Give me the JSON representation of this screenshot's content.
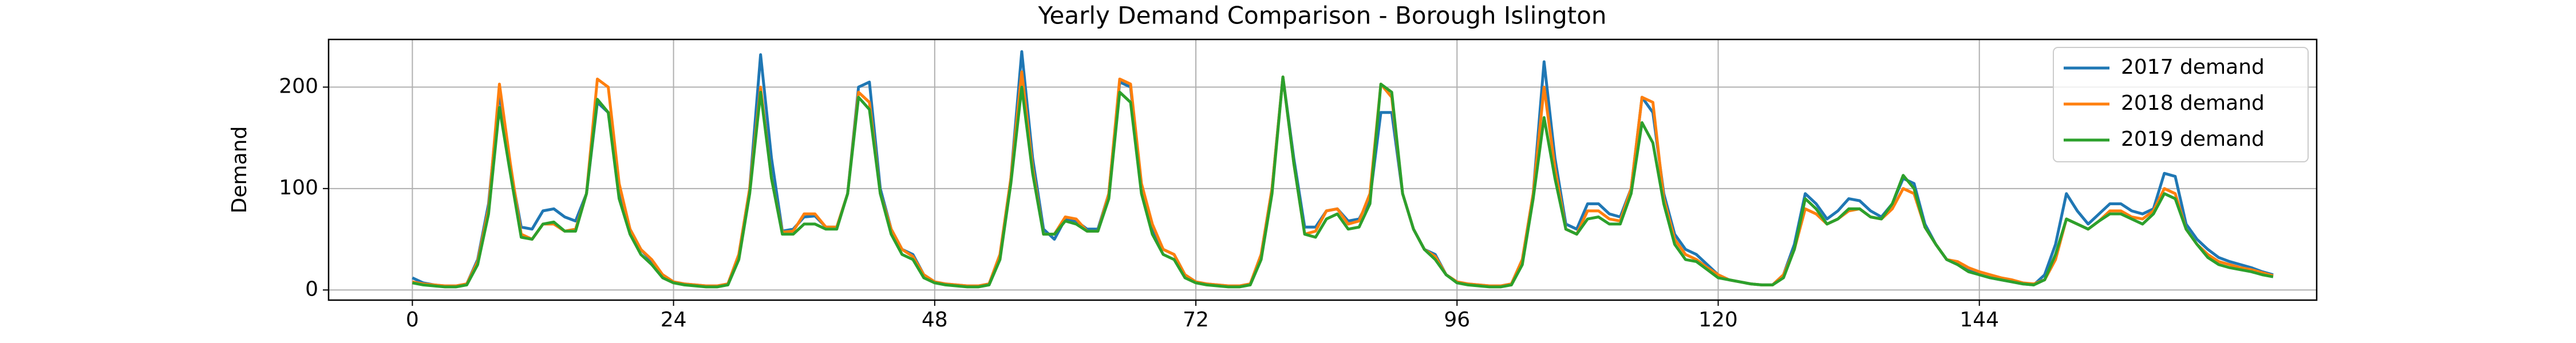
{
  "chart_data": {
    "type": "line",
    "title": "Yearly Demand Comparison - Borough Islington",
    "ylabel": "Demand",
    "xlim": [
      -7.7,
      175
    ],
    "xticks": [
      0,
      24,
      48,
      72,
      96,
      120,
      144
    ],
    "ylim": [
      -10,
      247
    ],
    "yticks": [
      0,
      100,
      200
    ],
    "grid": true,
    "legend": "upper right",
    "x": [
      0,
      1,
      2,
      3,
      4,
      5,
      6,
      7,
      8,
      9,
      10,
      11,
      12,
      13,
      14,
      15,
      16,
      17,
      18,
      19,
      20,
      21,
      22,
      23,
      24,
      25,
      26,
      27,
      28,
      29,
      30,
      31,
      32,
      33,
      34,
      35,
      36,
      37,
      38,
      39,
      40,
      41,
      42,
      43,
      44,
      45,
      46,
      47,
      48,
      49,
      50,
      51,
      52,
      53,
      54,
      55,
      56,
      57,
      58,
      59,
      60,
      61,
      62,
      63,
      64,
      65,
      66,
      67,
      68,
      69,
      70,
      71,
      72,
      73,
      74,
      75,
      76,
      77,
      78,
      79,
      80,
      81,
      82,
      83,
      84,
      85,
      86,
      87,
      88,
      89,
      90,
      91,
      92,
      93,
      94,
      95,
      96,
      97,
      98,
      99,
      100,
      101,
      102,
      103,
      104,
      105,
      106,
      107,
      108,
      109,
      110,
      111,
      112,
      113,
      114,
      115,
      116,
      117,
      118,
      119,
      120,
      121,
      122,
      123,
      124,
      125,
      126,
      127,
      128,
      129,
      130,
      131,
      132,
      133,
      134,
      135,
      136,
      137,
      138,
      139,
      140,
      141,
      142,
      143,
      144,
      145,
      146,
      147,
      148,
      149,
      150,
      151,
      152,
      153,
      154,
      155,
      156,
      157,
      158,
      159,
      160,
      161,
      162,
      163,
      164,
      165,
      166,
      167,
      168,
      169,
      170,
      171
    ],
    "series": [
      {
        "name": "2017 demand",
        "color": "#1f77b4",
        "values": [
          12,
          7,
          5,
          4,
          4,
          6,
          30,
          85,
          195,
          120,
          62,
          60,
          78,
          80,
          72,
          68,
          95,
          185,
          175,
          100,
          60,
          40,
          28,
          15,
          8,
          6,
          5,
          4,
          4,
          6,
          35,
          100,
          232,
          130,
          58,
          60,
          72,
          73,
          62,
          62,
          95,
          200,
          205,
          100,
          60,
          40,
          35,
          15,
          8,
          6,
          5,
          4,
          4,
          6,
          35,
          110,
          235,
          130,
          60,
          50,
          70,
          68,
          60,
          60,
          95,
          205,
          200,
          100,
          60,
          40,
          35,
          15,
          8,
          6,
          5,
          4,
          4,
          6,
          35,
          100,
          210,
          130,
          62,
          62,
          78,
          80,
          68,
          70,
          90,
          175,
          175,
          95,
          60,
          40,
          35,
          15,
          8,
          6,
          5,
          4,
          4,
          6,
          30,
          95,
          225,
          130,
          65,
          60,
          85,
          85,
          75,
          72,
          100,
          190,
          175,
          95,
          55,
          40,
          35,
          25,
          15,
          10,
          8,
          6,
          5,
          5,
          15,
          45,
          95,
          85,
          70,
          78,
          90,
          88,
          78,
          72,
          85,
          110,
          105,
          65,
          45,
          30,
          25,
          20,
          15,
          12,
          10,
          8,
          6,
          5,
          15,
          45,
          95,
          78,
          65,
          75,
          85,
          85,
          78,
          75,
          80,
          115,
          112,
          65,
          50,
          40,
          32,
          28,
          25,
          22,
          18,
          15
        ]
      },
      {
        "name": "2018 demand",
        "color": "#ff7f0e",
        "values": [
          8,
          6,
          5,
          4,
          4,
          6,
          28,
          80,
          203,
          125,
          55,
          50,
          65,
          65,
          58,
          60,
          95,
          208,
          200,
          105,
          60,
          40,
          30,
          15,
          8,
          6,
          5,
          4,
          4,
          6,
          35,
          100,
          200,
          110,
          57,
          58,
          75,
          75,
          62,
          62,
          95,
          195,
          185,
          95,
          60,
          40,
          33,
          15,
          8,
          6,
          5,
          4,
          4,
          6,
          35,
          110,
          215,
          120,
          55,
          55,
          72,
          70,
          58,
          58,
          95,
          208,
          203,
          105,
          65,
          40,
          35,
          15,
          8,
          6,
          5,
          4,
          4,
          6,
          35,
          100,
          210,
          125,
          55,
          58,
          78,
          80,
          65,
          68,
          95,
          203,
          190,
          95,
          60,
          40,
          33,
          15,
          8,
          6,
          5,
          4,
          4,
          6,
          30,
          95,
          200,
          120,
          60,
          55,
          78,
          78,
          70,
          68,
          100,
          190,
          185,
          90,
          50,
          35,
          30,
          22,
          15,
          10,
          8,
          6,
          5,
          5,
          15,
          40,
          80,
          75,
          65,
          70,
          78,
          80,
          72,
          70,
          80,
          100,
          95,
          62,
          45,
          30,
          28,
          22,
          18,
          15,
          12,
          10,
          7,
          6,
          10,
          30,
          70,
          65,
          60,
          68,
          78,
          78,
          72,
          70,
          78,
          100,
          95,
          60,
          45,
          35,
          28,
          25,
          22,
          20,
          17,
          14
        ]
      },
      {
        "name": "2019 demand",
        "color": "#2ca02c",
        "values": [
          7,
          5,
          4,
          3,
          3,
          5,
          25,
          75,
          180,
          115,
          52,
          50,
          65,
          67,
          58,
          58,
          95,
          188,
          175,
          90,
          55,
          35,
          25,
          12,
          7,
          5,
          4,
          3,
          3,
          5,
          30,
          95,
          195,
          110,
          55,
          55,
          65,
          65,
          60,
          60,
          95,
          190,
          178,
          95,
          55,
          35,
          30,
          12,
          7,
          5,
          4,
          3,
          3,
          5,
          30,
          105,
          200,
          115,
          55,
          55,
          68,
          65,
          58,
          58,
          90,
          195,
          185,
          95,
          55,
          35,
          30,
          12,
          7,
          5,
          4,
          3,
          3,
          5,
          30,
          95,
          210,
          125,
          55,
          52,
          70,
          75,
          60,
          62,
          85,
          203,
          195,
          95,
          60,
          40,
          30,
          15,
          7,
          5,
          4,
          3,
          3,
          5,
          25,
          90,
          170,
          110,
          60,
          55,
          70,
          72,
          65,
          65,
          95,
          165,
          145,
          85,
          45,
          30,
          28,
          20,
          12,
          10,
          8,
          6,
          5,
          5,
          12,
          40,
          90,
          80,
          65,
          70,
          80,
          80,
          72,
          70,
          85,
          113,
          100,
          62,
          45,
          30,
          25,
          18,
          15,
          12,
          10,
          8,
          6,
          5,
          10,
          35,
          70,
          65,
          60,
          68,
          75,
          75,
          70,
          65,
          75,
          95,
          90,
          60,
          45,
          32,
          25,
          22,
          20,
          18,
          15,
          13
        ]
      }
    ]
  }
}
